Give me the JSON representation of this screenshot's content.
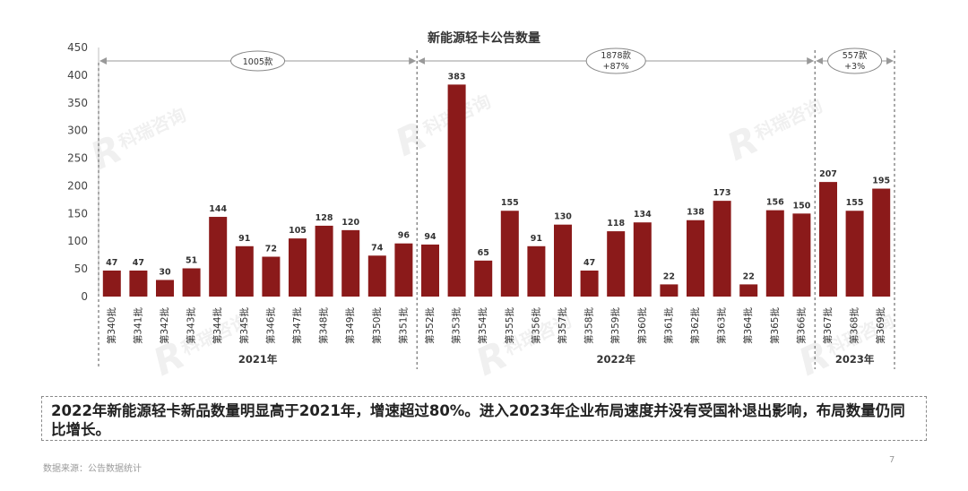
{
  "chart_data": {
    "type": "bar",
    "title": "新能源轻卡公告数量",
    "categories": [
      "第340批",
      "第341批",
      "第342批",
      "第343批",
      "第344批",
      "第345批",
      "第346批",
      "第347批",
      "第348批",
      "第349批",
      "第350批",
      "第351批",
      "第352批",
      "第353批",
      "第354批",
      "第355批",
      "第356批",
      "第357批",
      "第358批",
      "第359批",
      "第360批",
      "第361批",
      "第362批",
      "第363批",
      "第364批",
      "第365批",
      "第366批",
      "第367批",
      "第368批",
      "第369批"
    ],
    "values": [
      47,
      47,
      30,
      51,
      144,
      91,
      72,
      105,
      128,
      120,
      74,
      96,
      94,
      383,
      65,
      155,
      91,
      130,
      47,
      118,
      134,
      22,
      138,
      173,
      22,
      156,
      150,
      207,
      155,
      195
    ],
    "ylim": [
      0,
      450
    ],
    "yticks": [
      0,
      50,
      100,
      150,
      200,
      250,
      300,
      350,
      400,
      450
    ],
    "bar_color": "#8b1a1a",
    "groups": [
      {
        "year": "2021年",
        "start": 0,
        "end": 11,
        "total_label": "1005款",
        "growth_label": ""
      },
      {
        "year": "2022年",
        "start": 12,
        "end": 26,
        "total_label": "1878款",
        "growth_label": "+87%"
      },
      {
        "year": "2023年",
        "start": 27,
        "end": 29,
        "total_label": "557款",
        "growth_label": "+3%"
      }
    ]
  },
  "summary": "2022年新能源轻卡新品数量明显高于2021年，增速超过80%。进入2023年企业布局速度并没有受国补退出影响，布局数量仍同比增长。",
  "source": "数据来源：公告数据统计",
  "page_number": "7",
  "watermark_text": "科瑞咨询"
}
